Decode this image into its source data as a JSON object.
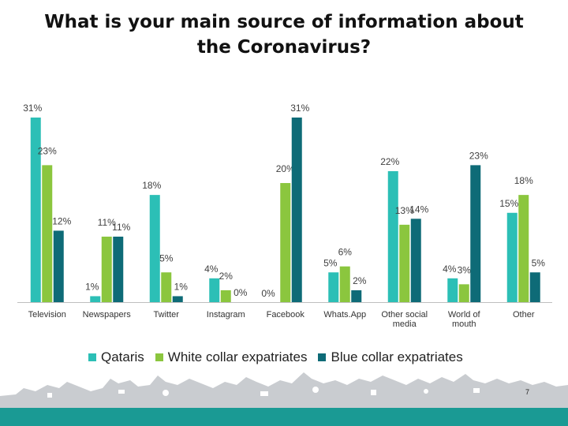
{
  "slide": {
    "number": "7"
  },
  "colors": {
    "qataris": "#2cbfb6",
    "white_collar": "#8bc63e",
    "blue_collar": "#0e6b77",
    "footer": "#1a9a94",
    "skyline": "#c9ccd0"
  },
  "chart_data": {
    "type": "bar",
    "title": "What is your main source of information about the Coronavirus?",
    "categories": [
      "Television",
      "Newspapers",
      "Twitter",
      "Instagram",
      "Facebook",
      "Whats.App",
      "Other social media",
      "World of mouth",
      "Other"
    ],
    "series": [
      {
        "name": "Qataris",
        "values": [
          31,
          1,
          18,
          4,
          0,
          5,
          22,
          4,
          15
        ],
        "labels": [
          "31%",
          "1%",
          "18%",
          "4%",
          "",
          "5%",
          "22%",
          "4%",
          "15%"
        ]
      },
      {
        "name": "White collar expatriates",
        "values": [
          23,
          11,
          5,
          2,
          20,
          6,
          13,
          3,
          18
        ],
        "labels": [
          "23%",
          "11%",
          "5%",
          "2%",
          "20%",
          "6%",
          "13%",
          "3%",
          "18%"
        ]
      },
      {
        "name": "Blue collar expatriates",
        "values": [
          12,
          11,
          1,
          0,
          31,
          2,
          14,
          23,
          5
        ],
        "labels": [
          "12%",
          "11%",
          "1%",
          "0%",
          "31%",
          "2%",
          "14%",
          "23%",
          "5%"
        ]
      }
    ],
    "extra_labels": [
      "0%"
    ],
    "ylim": [
      0,
      31
    ],
    "legend": "bottom",
    "grid": false,
    "xlabel": "",
    "ylabel": ""
  }
}
